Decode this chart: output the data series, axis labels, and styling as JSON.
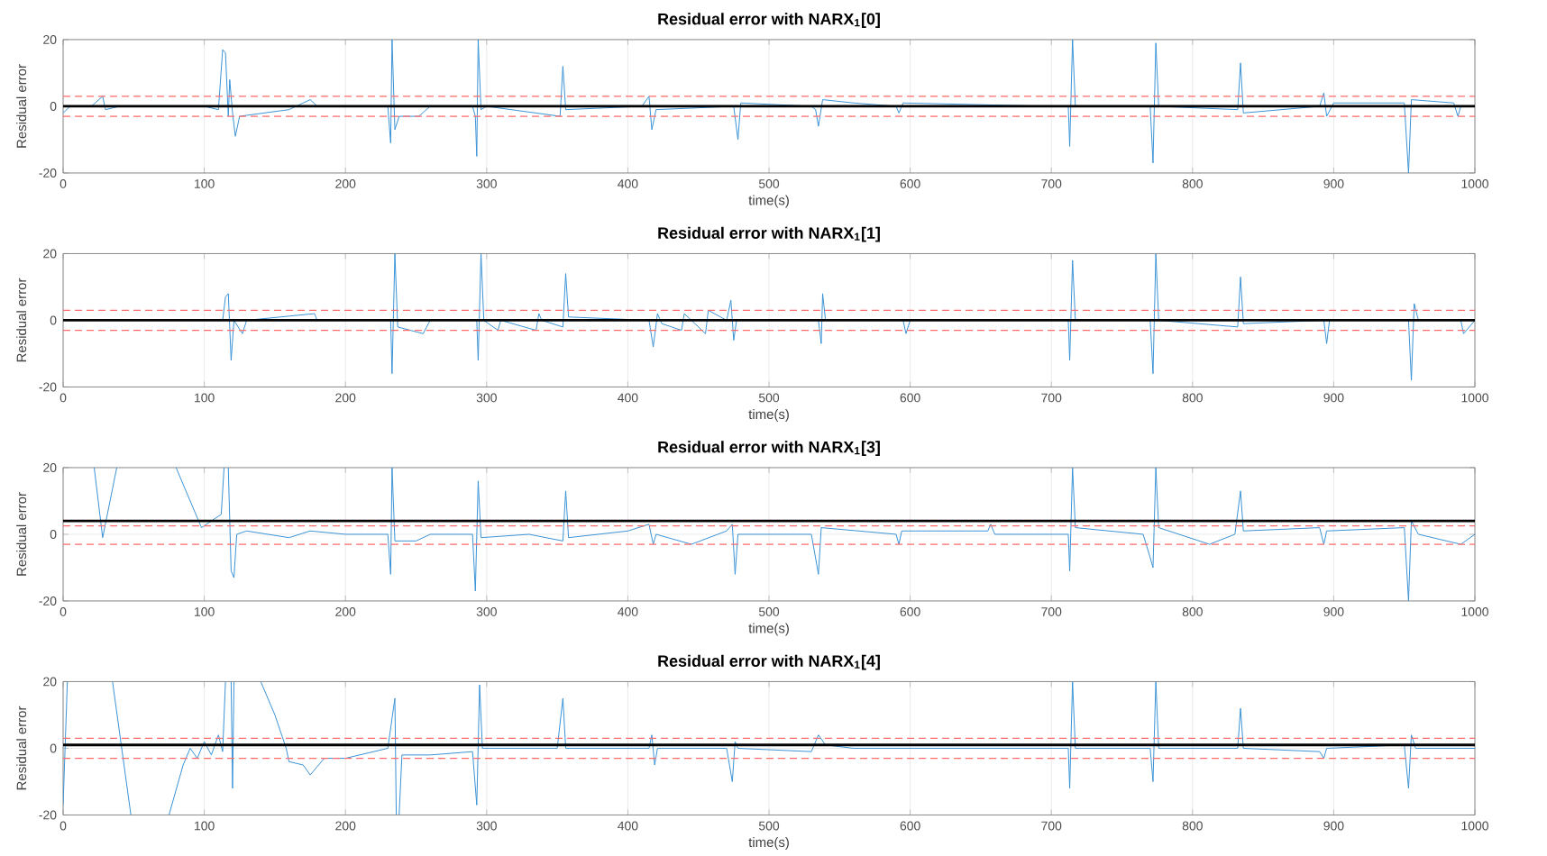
{
  "chart_data": [
    {
      "type": "line",
      "title": "Residual error with NARX$_{1}$[0]",
      "xlabel": "time(s)",
      "ylabel": "Residual error",
      "color": "#3a93d6",
      "grid": true,
      "xlim": [
        0,
        1000
      ],
      "ylim": [
        -20,
        20
      ],
      "xticks": [
        0,
        100,
        200,
        300,
        400,
        500,
        600,
        700,
        800,
        900,
        1000
      ],
      "yticks": [
        -20,
        0,
        20
      ],
      "x": [
        0,
        5,
        20,
        28,
        30,
        40,
        100,
        110,
        113,
        115,
        117,
        118,
        120,
        122,
        125,
        160,
        175,
        180,
        230,
        232,
        233,
        235,
        238,
        252,
        260,
        290,
        292,
        293,
        294,
        296,
        300,
        352,
        354,
        356,
        410,
        415,
        417,
        420,
        475,
        478,
        480,
        530,
        533,
        535,
        538,
        560,
        590,
        592,
        595,
        700,
        712,
        713,
        715,
        717,
        770,
        772,
        774,
        776,
        832,
        834,
        836,
        890,
        893,
        895,
        900,
        950,
        953,
        955,
        985,
        988,
        990,
        1000
      ],
      "values": [
        -2,
        0,
        0,
        3,
        -1,
        0,
        0,
        -1,
        17,
        16,
        -3,
        8,
        -2,
        -9,
        -3,
        -1,
        2,
        0,
        0,
        -11,
        20,
        -7,
        -3,
        -3,
        0,
        0,
        -3,
        -15,
        20,
        -1,
        0,
        -3,
        12,
        -1,
        0,
        3,
        -7,
        -1,
        0,
        -10,
        1,
        0,
        -1,
        -6,
        2,
        1,
        0,
        -2,
        1,
        0,
        0,
        -12,
        20,
        0,
        0,
        -17,
        19,
        0,
        -1,
        13,
        -2,
        0,
        4,
        -3,
        1,
        1,
        -20,
        2,
        1,
        -3,
        0,
        0
      ],
      "ref_lines": [
        {
          "axis": "y",
          "value": 0,
          "color": "#000000",
          "line_style": "solid"
        },
        {
          "axis": "y",
          "value": 3,
          "color": "#ff6b6b",
          "line_style": "dashed"
        },
        {
          "axis": "y",
          "value": -3,
          "color": "#ff6b6b",
          "line_style": "dashed"
        }
      ]
    },
    {
      "type": "line",
      "title": "Residual error with NARX$_{1}$[1]",
      "xlabel": "time(s)",
      "ylabel": "Residual error",
      "color": "#3a93d6",
      "grid": true,
      "xlim": [
        0,
        1000
      ],
      "ylim": [
        -20,
        20
      ],
      "xticks": [
        0,
        100,
        200,
        300,
        400,
        500,
        600,
        700,
        800,
        900,
        1000
      ],
      "yticks": [
        -20,
        0,
        20
      ],
      "x": [
        0,
        113,
        115,
        117,
        118,
        119,
        121,
        127,
        130,
        178,
        180,
        232,
        233,
        235,
        237,
        255,
        260,
        293,
        294,
        296,
        298,
        308,
        310,
        335,
        337,
        339,
        354,
        356,
        358,
        415,
        418,
        421,
        424,
        438,
        440,
        455,
        457,
        470,
        473,
        475,
        477,
        535,
        537,
        538,
        540,
        595,
        597,
        600,
        712,
        713,
        715,
        717,
        770,
        772,
        774,
        776,
        832,
        834,
        836,
        893,
        895,
        897,
        953,
        955,
        957,
        960,
        990,
        992,
        1000
      ],
      "values": [
        0,
        0,
        7,
        8,
        -2,
        -12,
        0,
        -4,
        0,
        2,
        0,
        0,
        -16,
        20,
        -2,
        -4,
        0,
        0,
        -12,
        20,
        0,
        -3,
        0,
        -3,
        2,
        0,
        -2,
        14,
        1,
        0,
        -8,
        2,
        -1,
        -3,
        2,
        -4,
        3,
        0,
        6,
        -6,
        0,
        0,
        -7,
        8,
        0,
        0,
        -4,
        0,
        0,
        -12,
        18,
        0,
        0,
        -16,
        20,
        0,
        -2,
        13,
        -1,
        0,
        -7,
        0,
        0,
        -18,
        5,
        0,
        0,
        -4,
        0
      ],
      "ref_lines": [
        {
          "axis": "y",
          "value": 0,
          "color": "#000000",
          "line_style": "solid"
        },
        {
          "axis": "y",
          "value": 3,
          "color": "#ff6b6b",
          "line_style": "dashed"
        },
        {
          "axis": "y",
          "value": -3,
          "color": "#ff6b6b",
          "line_style": "dashed"
        }
      ]
    },
    {
      "type": "line",
      "title": "Residual error with NARX$_{1}$[3]",
      "xlabel": "time(s)",
      "ylabel": "Residual error",
      "color": "#3a93d6",
      "grid": true,
      "xlim": [
        0,
        1000
      ],
      "ylim": [
        -20,
        20
      ],
      "xticks": [
        0,
        100,
        200,
        300,
        400,
        500,
        600,
        700,
        800,
        900,
        1000
      ],
      "yticks": [
        -20,
        0,
        20
      ],
      "x": [
        22,
        28,
        38,
        39,
        80,
        90,
        98,
        105,
        112,
        114,
        115,
        117,
        119,
        121,
        123,
        130,
        160,
        175,
        200,
        230,
        232,
        233,
        235,
        250,
        260,
        290,
        292,
        294,
        296,
        330,
        354,
        356,
        358,
        400,
        415,
        418,
        420,
        445,
        470,
        474,
        476,
        478,
        530,
        535,
        537,
        590,
        592,
        594,
        655,
        657,
        660,
        712,
        713,
        715,
        717,
        765,
        770,
        772,
        774,
        776,
        812,
        830,
        834,
        836,
        890,
        893,
        895,
        950,
        953,
        955,
        960,
        990,
        1000
      ],
      "values": [
        20,
        -1,
        20,
        null,
        20,
        10,
        2,
        4,
        6,
        20,
        null,
        20,
        -11,
        -13,
        0,
        1,
        -1,
        1,
        0,
        0,
        -12,
        20,
        -2,
        -2,
        0,
        0,
        -17,
        16,
        -1,
        0,
        -2,
        13,
        -1,
        1,
        3,
        -3,
        0,
        -3,
        1,
        3,
        -12,
        0,
        0,
        -12,
        2,
        0,
        -3,
        1,
        1,
        3,
        0,
        0,
        -11,
        20,
        2,
        0,
        -7,
        -10,
        20,
        2,
        -3,
        0,
        13,
        1,
        2,
        -3,
        1,
        2,
        -20,
        4,
        0,
        -3,
        0
      ],
      "ref_lines": [
        {
          "axis": "y",
          "value": 2.5,
          "color": "#ff6b6b",
          "line_style": "dashed"
        },
        {
          "axis": "y",
          "value": -3,
          "color": "#ff6b6b",
          "line_style": "dashed"
        },
        {
          "axis": "y",
          "value": 4,
          "color": "#000000",
          "line_style": "solid"
        }
      ]
    },
    {
      "type": "line",
      "title": "Residual error with NARX$_{1}$[4]",
      "xlabel": "time(s)",
      "ylabel": "Residual error",
      "color": "#3a93d6",
      "grid": true,
      "xlim": [
        0,
        1000
      ],
      "ylim": [
        -20,
        20
      ],
      "xticks": [
        0,
        100,
        200,
        300,
        400,
        500,
        600,
        700,
        800,
        900,
        1000
      ],
      "yticks": [
        -20,
        0,
        20
      ],
      "x": [
        0,
        3,
        4,
        35,
        48,
        49,
        75,
        85,
        90,
        95,
        100,
        105,
        110,
        113,
        115,
        116,
        119,
        120,
        121,
        122,
        140,
        150,
        158,
        160,
        170,
        175,
        185,
        200,
        230,
        235,
        236,
        237,
        238,
        240,
        260,
        290,
        293,
        295,
        297,
        350,
        354,
        356,
        415,
        417,
        419,
        421,
        470,
        474,
        476,
        478,
        530,
        535,
        540,
        560,
        600,
        712,
        713,
        715,
        717,
        770,
        772,
        774,
        776,
        832,
        834,
        836,
        890,
        893,
        895,
        950,
        953,
        955,
        958,
        1000
      ],
      "values": [
        -17,
        20,
        null,
        20,
        -20,
        null,
        -20,
        -5,
        0,
        -3,
        2,
        -2,
        4,
        -1,
        20,
        null,
        20,
        -12,
        20,
        null,
        20,
        10,
        0,
        -4,
        -5,
        -8,
        -3,
        -3,
        0,
        15,
        -20,
        null,
        -20,
        -2,
        -2,
        -1,
        -17,
        19,
        0,
        0,
        15,
        0,
        0,
        4,
        -5,
        0,
        0,
        -10,
        2,
        0,
        -1,
        4,
        1,
        0,
        0,
        0,
        -12,
        20,
        0,
        0,
        -10,
        20,
        0,
        0,
        12,
        0,
        -1,
        -3,
        0,
        1,
        -12,
        4,
        0,
        0
      ],
      "ref_lines": [
        {
          "axis": "y",
          "value": 1,
          "color": "#000000",
          "line_style": "solid"
        },
        {
          "axis": "y",
          "value": 3,
          "color": "#ff6b6b",
          "line_style": "dashed"
        },
        {
          "axis": "y",
          "value": -3,
          "color": "#ff6b6b",
          "line_style": "dashed"
        }
      ]
    }
  ]
}
